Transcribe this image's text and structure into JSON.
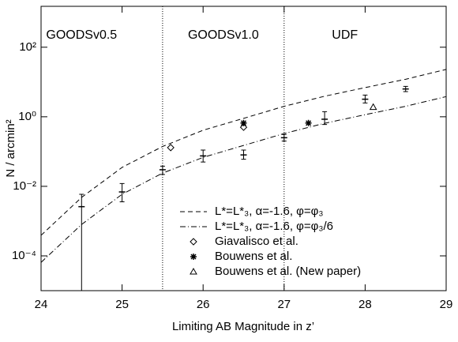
{
  "chart_data": {
    "type": "line",
    "xlabel": "Limiting AB Magnitude in z’",
    "ylabel": "N / arcmin²",
    "xlim": [
      24,
      29
    ],
    "xticks": [
      24,
      25,
      26,
      27,
      28,
      29
    ],
    "ylim": [
      1e-05,
      1500
    ],
    "log_y": true,
    "yticks": [
      {
        "value": 0.0001,
        "label": "10⁻⁴"
      },
      {
        "value": 0.01,
        "label": "10⁻²"
      },
      {
        "value": 1,
        "label": "10⁰"
      },
      {
        "value": 100,
        "label": "10²"
      }
    ],
    "vlines": [
      25.5,
      27
    ],
    "regions": [
      {
        "label": "GOODSv0.5",
        "x": 24.5
      },
      {
        "label": "GOODSv1.0",
        "x": 26.25
      },
      {
        "label": "UDF",
        "x": 27.75
      }
    ],
    "series": [
      {
        "name": "L*=L*₃, α=-1.6, φ=φ₃",
        "style": "dashed",
        "color": "#000000",
        "x": [
          24,
          24.5,
          25,
          25.5,
          26,
          26.5,
          27,
          27.5,
          28,
          28.5,
          29
        ],
        "values": [
          0.00039,
          0.0048,
          0.035,
          0.14,
          0.41,
          0.9,
          2.0,
          3.9,
          6.9,
          12,
          23
        ]
      },
      {
        "name": "L*=L*₃, α=-1.6, φ=φ₃/6",
        "style": "dashdot",
        "color": "#000000",
        "x": [
          24,
          24.5,
          25,
          25.5,
          26,
          26.5,
          27,
          27.5,
          28,
          28.5,
          29
        ],
        "values": [
          6.5e-05,
          0.0008,
          0.0059,
          0.024,
          0.068,
          0.15,
          0.33,
          0.65,
          1.15,
          2.0,
          3.8
        ]
      },
      {
        "name": "Giavalisco et al.",
        "style": "diamond",
        "color": "#000000",
        "x": [
          25.6,
          26.5
        ],
        "values": [
          0.13,
          0.5
        ]
      },
      {
        "name": "Bouwens et al.",
        "style": "asterisk",
        "color": "#000000",
        "x": [
          26.5,
          27.3
        ],
        "values": [
          0.66,
          0.66
        ]
      },
      {
        "name": "Bouwens et al. (New paper)",
        "style": "triangle",
        "color": "#000000",
        "x": [
          28.1
        ],
        "values": [
          1.9
        ]
      },
      {
        "style": "errorbar",
        "color": "#000000",
        "x": [
          24.5,
          25,
          25.5,
          26,
          26.5,
          27,
          27.5,
          28,
          28.5
        ],
        "values": [
          0.0026,
          0.0069,
          0.03,
          0.075,
          0.08,
          0.25,
          0.85,
          3.2,
          6.3
        ],
        "upper": [
          0.0059,
          0.012,
          0.038,
          0.11,
          0.11,
          0.31,
          1.4,
          4.2,
          7.5
        ],
        "lower": [
          1e-05,
          0.0036,
          0.022,
          0.05,
          0.06,
          0.2,
          0.6,
          2.5,
          5.3
        ]
      }
    ]
  }
}
